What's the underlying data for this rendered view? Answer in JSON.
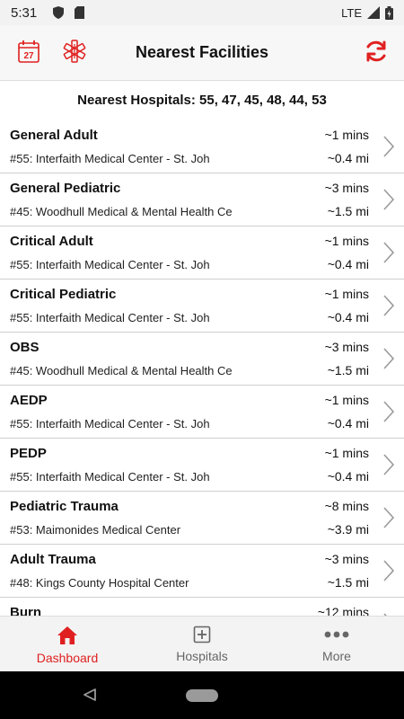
{
  "status_bar": {
    "time": "5:31",
    "network": "LTE"
  },
  "header": {
    "title": "Nearest Facilities",
    "calendar_day": "27",
    "accent_color": "#e02020"
  },
  "subtitle": "Nearest Hospitals: 55, 47, 45, 48, 44, 53",
  "facilities": [
    {
      "name": "General Adult",
      "hospital": "#55: Interfaith Medical Center - St. Joh",
      "time": "~1 mins",
      "distance": "~0.4 mi"
    },
    {
      "name": "General Pediatric",
      "hospital": "#45: Woodhull Medical & Mental Health Ce",
      "time": "~3 mins",
      "distance": "~1.5 mi"
    },
    {
      "name": "Critical Adult",
      "hospital": "#55: Interfaith Medical Center - St. Joh",
      "time": "~1 mins",
      "distance": "~0.4 mi"
    },
    {
      "name": "Critical Pediatric",
      "hospital": "#55: Interfaith Medical Center - St. Joh",
      "time": "~1 mins",
      "distance": "~0.4 mi"
    },
    {
      "name": "OBS",
      "hospital": "#45: Woodhull Medical & Mental Health Ce",
      "time": "~3 mins",
      "distance": "~1.5 mi"
    },
    {
      "name": "AEDP",
      "hospital": "#55: Interfaith Medical Center - St. Joh",
      "time": "~1 mins",
      "distance": "~0.4 mi"
    },
    {
      "name": "PEDP",
      "hospital": "#55: Interfaith Medical Center - St. Joh",
      "time": "~1 mins",
      "distance": "~0.4 mi"
    },
    {
      "name": "Pediatric Trauma",
      "hospital": "#53: Maimonides Medical Center",
      "time": "~8 mins",
      "distance": "~3.9 mi"
    },
    {
      "name": "Adult Trauma",
      "hospital": "#48: Kings County Hospital Center",
      "time": "~3 mins",
      "distance": "~1.5 mi"
    },
    {
      "name": "Burn",
      "hospital": "",
      "time": "~12 mins",
      "distance": ""
    }
  ],
  "bottom_nav": [
    {
      "label": "Dashboard",
      "icon": "home-icon",
      "active": true
    },
    {
      "label": "Hospitals",
      "icon": "hospital-plus-icon",
      "active": false
    },
    {
      "label": "More",
      "icon": "more-dots-icon",
      "active": false
    }
  ]
}
